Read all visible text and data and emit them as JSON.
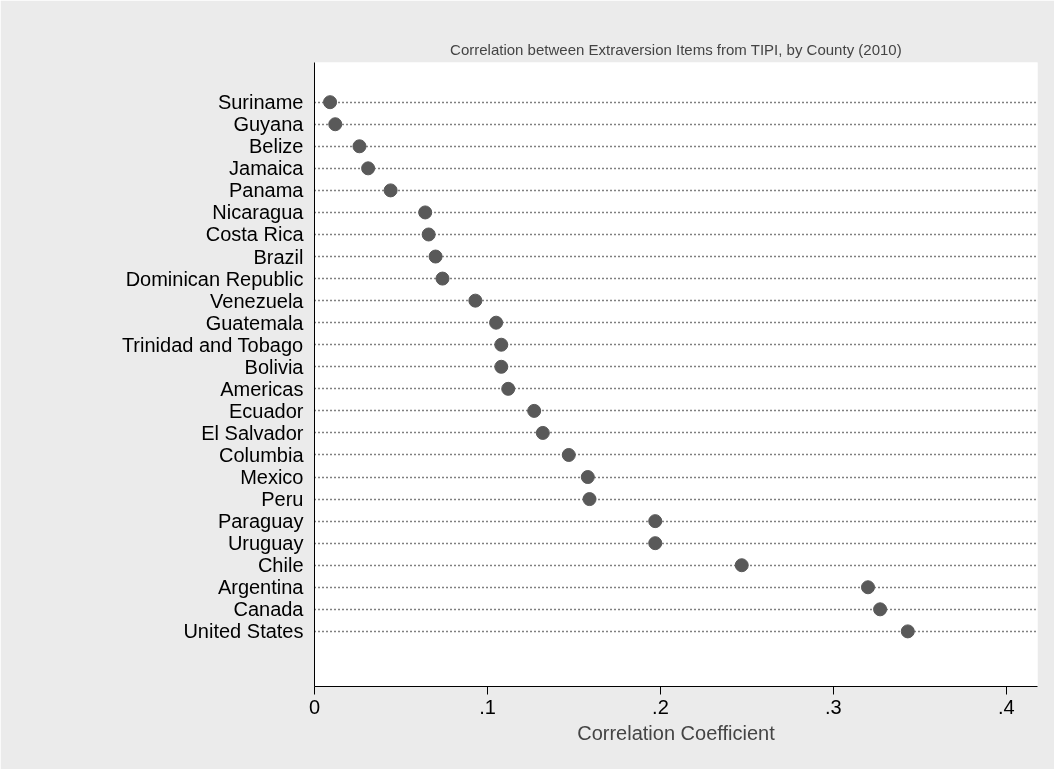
{
  "chart_data": {
    "type": "scatter",
    "orientation": "horizontal",
    "title": "Correlation between Extraversion Items from TIPI, by County (2010)",
    "xlabel": "Correlation Coefficient",
    "categories": [
      "Suriname",
      "Guyana",
      "Belize",
      "Jamaica",
      "Panama",
      "Nicaragua",
      "Costa Rica",
      "Brazil",
      "Dominican Republic",
      "Venezuela",
      "Guatemala",
      "Trinidad and Tobago",
      "Bolivia",
      "Americas",
      "Ecuador",
      "El Salvador",
      "Columbia",
      "Mexico",
      "Peru",
      "Paraguay",
      "Uruguay",
      "Chile",
      "Argentina",
      "Canada",
      "United States"
    ],
    "series": [
      {
        "color": "#595959",
        "values": [
          0.009,
          0.012,
          0.026,
          0.031,
          0.044,
          0.064,
          0.066,
          0.07,
          0.074,
          0.093,
          0.105,
          0.108,
          0.108,
          0.112,
          0.127,
          0.132,
          0.147,
          0.158,
          0.159,
          0.197,
          0.197,
          0.247,
          0.32,
          0.327,
          0.343
        ]
      }
    ],
    "xlim": [
      0,
      0.418
    ],
    "xticks": [
      {
        "value": 0,
        "label": "0"
      },
      {
        "value": 0.1,
        "label": ".1"
      },
      {
        "value": 0.2,
        "label": ".2"
      },
      {
        "value": 0.3,
        "label": ".3"
      },
      {
        "value": 0.4,
        "label": ".4"
      }
    ],
    "grid": "y",
    "line_style": "dotted",
    "marker": "circle"
  }
}
